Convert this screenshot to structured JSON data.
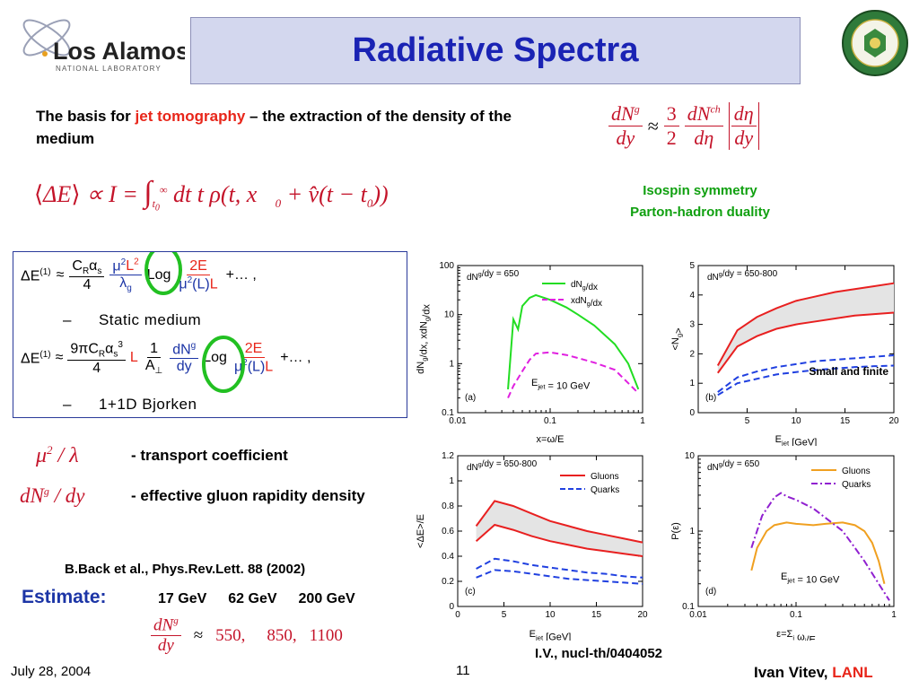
{
  "title": "Radiative Spectra",
  "intro": {
    "pre": "The basis for ",
    "highlight": "jet tomography",
    "post": " – the extraction of the density of the medium"
  },
  "side_notes": {
    "line1": "Isospin symmetry",
    "line2": "Parton-hadron duality"
  },
  "equation_box": {
    "static_label": "Static medium",
    "bjorken_label": "1+1D Bjorken",
    "dash": "–"
  },
  "coefficients": {
    "transport": "- transport coefficient",
    "rapidity": "- effective gluon rapidity density"
  },
  "reference": "B.Back et al., Phys.Rev.Lett. 88 (2002)",
  "estimate": {
    "label": "Estimate:",
    "energies": [
      "17 GeV",
      "62 GeV",
      "200 GeV"
    ],
    "values": [
      "550,",
      "850,",
      "1100"
    ]
  },
  "small_finite_label": "Small and finite",
  "citation": "I.V., nucl-th/0404052",
  "footer": {
    "date": "July 28, 2004",
    "page": "11",
    "author": "Ivan Vitev, ",
    "lab": "LANL"
  },
  "logo": {
    "brand": "Los Alamos",
    "sub": "NATIONAL LABORATORY"
  },
  "colors": {
    "title": "#1a23b4",
    "banner": "#d3d7ee",
    "accent_red": "#e8261a",
    "green": "#10a010",
    "navy": "#1c35a6"
  },
  "chart_data": [
    {
      "type": "line",
      "panel": "(a)",
      "xlabel": "x=ω/E",
      "ylabel": "dN_g/dx,  xdN_g/dx",
      "xscale": "log",
      "yscale": "log",
      "xlim": [
        0.01,
        1
      ],
      "ylim": [
        0.1,
        100
      ],
      "annotation": "dN^g/dy = 650",
      "energy_label": "E_jet = 10 GeV",
      "series": [
        {
          "name": "dN_g/dx",
          "color": "#22dd22",
          "style": "solid",
          "x": [
            0.035,
            0.04,
            0.045,
            0.05,
            0.06,
            0.07,
            0.1,
            0.15,
            0.2,
            0.3,
            0.5,
            0.7,
            0.9
          ],
          "y": [
            0.3,
            8,
            5,
            15,
            22,
            25,
            20,
            14,
            10,
            6,
            2.5,
            1,
            0.3
          ]
        },
        {
          "name": "xdN_g/dx",
          "color": "#e020e0",
          "style": "dashed",
          "x": [
            0.035,
            0.04,
            0.05,
            0.06,
            0.07,
            0.1,
            0.15,
            0.2,
            0.3,
            0.5,
            0.7,
            0.9
          ],
          "y": [
            0.2,
            0.35,
            0.7,
            1.2,
            1.6,
            1.7,
            1.5,
            1.3,
            1.05,
            0.75,
            0.4,
            0.25
          ]
        }
      ],
      "xticks": [
        "0.01",
        "0.1",
        "1"
      ],
      "yticks": [
        "0.1",
        "1",
        "10",
        "100"
      ]
    },
    {
      "type": "line",
      "panel": "(b)",
      "xlabel": "E_jet [GeV]",
      "ylabel": "<N_g>",
      "xlim": [
        0,
        20
      ],
      "ylim": [
        0,
        5
      ],
      "annotation": "dN^g/dy = 650-800",
      "series": [
        {
          "name": "Gluons upper",
          "color": "#e82020",
          "style": "solid",
          "x": [
            2,
            4,
            6,
            8,
            10,
            12,
            14,
            16,
            18,
            20
          ],
          "y": [
            1.6,
            2.8,
            3.25,
            3.55,
            3.8,
            3.95,
            4.1,
            4.2,
            4.3,
            4.4
          ]
        },
        {
          "name": "Gluons lower",
          "color": "#e82020",
          "style": "solid",
          "x": [
            2,
            4,
            6,
            8,
            10,
            12,
            14,
            16,
            18,
            20
          ],
          "y": [
            1.35,
            2.25,
            2.6,
            2.85,
            3.0,
            3.1,
            3.2,
            3.3,
            3.35,
            3.4
          ]
        },
        {
          "name": "Quarks upper",
          "color": "#2040e0",
          "style": "dashed",
          "x": [
            2,
            4,
            6,
            8,
            10,
            12,
            14,
            16,
            18,
            20
          ],
          "y": [
            0.7,
            1.2,
            1.4,
            1.55,
            1.65,
            1.75,
            1.8,
            1.85,
            1.9,
            1.95
          ]
        },
        {
          "name": "Quarks lower",
          "color": "#2040e0",
          "style": "dashed",
          "x": [
            2,
            4,
            6,
            8,
            10,
            12,
            14,
            16,
            18,
            20
          ],
          "y": [
            0.6,
            1.0,
            1.15,
            1.3,
            1.38,
            1.45,
            1.5,
            1.55,
            1.58,
            1.6
          ]
        }
      ],
      "xticks": [
        "5",
        "10",
        "15",
        "20"
      ],
      "yticks": [
        "0",
        "1",
        "2",
        "3",
        "4",
        "5"
      ]
    },
    {
      "type": "line",
      "panel": "(c)",
      "xlabel": "E_jet [GeV]",
      "ylabel": "<ΔE>/E",
      "xlim": [
        0,
        20
      ],
      "ylim": [
        0,
        1.2
      ],
      "annotation": "dN^g/dy = 650-800",
      "legend": [
        "Gluons",
        "Quarks"
      ],
      "series": [
        {
          "name": "Gluons",
          "color": "#e82020",
          "style": "solid",
          "x": [
            2,
            4,
            6,
            8,
            10,
            12,
            14,
            16,
            18,
            20
          ],
          "y": [
            0.64,
            0.84,
            0.8,
            0.74,
            0.68,
            0.64,
            0.6,
            0.57,
            0.54,
            0.51
          ]
        },
        {
          "name": "Gluons lower",
          "color": "#e82020",
          "style": "solid",
          "x": [
            2,
            4,
            6,
            8,
            10,
            12,
            14,
            16,
            18,
            20
          ],
          "y": [
            0.52,
            0.65,
            0.61,
            0.56,
            0.52,
            0.49,
            0.46,
            0.44,
            0.42,
            0.4
          ]
        },
        {
          "name": "Quarks",
          "color": "#2040e0",
          "style": "dashed",
          "x": [
            2,
            4,
            6,
            8,
            10,
            12,
            14,
            16,
            18,
            20
          ],
          "y": [
            0.3,
            0.38,
            0.36,
            0.33,
            0.31,
            0.29,
            0.27,
            0.26,
            0.24,
            0.23
          ]
        },
        {
          "name": "Quarks lower",
          "color": "#2040e0",
          "style": "dashed",
          "x": [
            2,
            4,
            6,
            8,
            10,
            12,
            14,
            16,
            18,
            20
          ],
          "y": [
            0.23,
            0.29,
            0.28,
            0.26,
            0.24,
            0.22,
            0.21,
            0.2,
            0.19,
            0.18
          ]
        }
      ],
      "xticks": [
        "0",
        "5",
        "10",
        "15",
        "20"
      ],
      "yticks": [
        "0",
        "0.2",
        "0.4",
        "0.6",
        "0.8",
        "1",
        "1.2"
      ]
    },
    {
      "type": "line",
      "panel": "(d)",
      "xlabel": "ε=Σ_i ω_i/E",
      "ylabel": "P(ε)",
      "xscale": "log",
      "yscale": "log",
      "xlim": [
        0.01,
        1
      ],
      "ylim": [
        0.1,
        10
      ],
      "annotation": "dN^g/dy = 650",
      "energy_label": "E_jet = 10 GeV",
      "legend": [
        "Gluons",
        "Quarks"
      ],
      "series": [
        {
          "name": "Gluons",
          "color": "#f0a020",
          "style": "solid",
          "x": [
            0.035,
            0.04,
            0.05,
            0.06,
            0.08,
            0.1,
            0.15,
            0.2,
            0.3,
            0.4,
            0.5,
            0.6,
            0.7,
            0.8
          ],
          "y": [
            0.3,
            0.6,
            1.0,
            1.2,
            1.3,
            1.25,
            1.2,
            1.25,
            1.3,
            1.2,
            1.0,
            0.7,
            0.4,
            0.2
          ]
        },
        {
          "name": "Quarks",
          "color": "#9020d0",
          "style": "dashdot",
          "x": [
            0.035,
            0.045,
            0.06,
            0.07,
            0.08,
            0.1,
            0.15,
            0.2,
            0.3,
            0.4,
            0.5,
            0.7,
            0.9
          ],
          "y": [
            0.6,
            1.6,
            2.8,
            3.2,
            2.9,
            2.6,
            2.0,
            1.5,
            1.0,
            0.6,
            0.4,
            0.2,
            0.12
          ]
        }
      ],
      "xticks": [
        "0.01",
        "0.1",
        "1"
      ],
      "yticks": [
        "0.1",
        "1",
        "10"
      ]
    }
  ]
}
